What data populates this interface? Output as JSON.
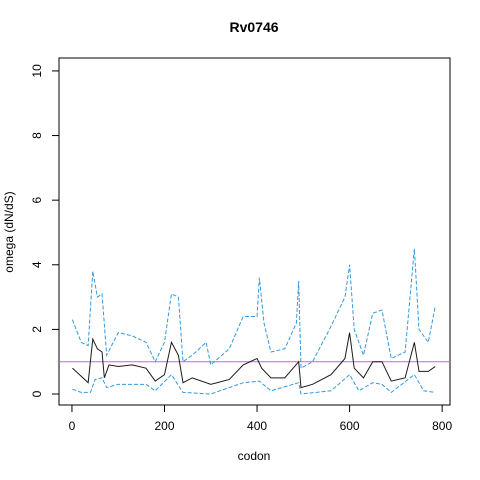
{
  "chart_data": {
    "type": "line",
    "title": "Rv0746",
    "xlabel": "codon",
    "ylabel": "omega (dN/dS)",
    "xlim": [
      -28,
      817
    ],
    "ylim": [
      -0.34,
      10.4
    ],
    "xticks": [
      0,
      200,
      400,
      600,
      800
    ],
    "yticks": [
      0,
      2,
      4,
      6,
      8,
      10
    ],
    "hline": {
      "value": 1,
      "color": "#cc66cc"
    },
    "series": [
      {
        "color": "#1a1a1a",
        "dash": false,
        "x": [
          1,
          20,
          35,
          45,
          55,
          65,
          70,
          80,
          100,
          130,
          160,
          180,
          200,
          215,
          230,
          240,
          260,
          300,
          340,
          370,
          400,
          410,
          430,
          460,
          490,
          495,
          520,
          560,
          590,
          600,
          610,
          630,
          650,
          670,
          690,
          720,
          740,
          750,
          770,
          785
        ],
        "values": [
          0.8,
          0.55,
          0.35,
          1.7,
          1.4,
          1.3,
          0.5,
          0.9,
          0.85,
          0.9,
          0.8,
          0.4,
          0.6,
          1.6,
          1.2,
          0.35,
          0.5,
          0.3,
          0.45,
          0.9,
          1.1,
          0.8,
          0.5,
          0.5,
          1.0,
          0.2,
          0.3,
          0.6,
          1.1,
          1.9,
          0.8,
          0.5,
          1.0,
          1.0,
          0.4,
          0.5,
          1.6,
          0.7,
          0.7,
          0.85
        ]
      },
      {
        "color": "#3399dd",
        "dash": true,
        "x": [
          1,
          20,
          35,
          45,
          55,
          65,
          75,
          100,
          130,
          160,
          180,
          200,
          215,
          230,
          240,
          260,
          290,
          300,
          340,
          370,
          400,
          405,
          415,
          430,
          460,
          485,
          490,
          495,
          520,
          560,
          590,
          600,
          610,
          630,
          650,
          670,
          690,
          720,
          740,
          750,
          770,
          785
        ],
        "values": [
          2.3,
          1.6,
          1.5,
          3.8,
          3.0,
          3.1,
          1.2,
          1.9,
          1.8,
          1.6,
          1.0,
          1.6,
          3.1,
          3.0,
          1.0,
          1.2,
          1.6,
          0.9,
          1.4,
          2.4,
          2.4,
          3.6,
          2.2,
          1.3,
          1.4,
          2.2,
          3.5,
          0.8,
          1.0,
          2.1,
          3.0,
          4.0,
          2.0,
          1.2,
          2.5,
          2.6,
          1.1,
          1.3,
          4.5,
          2.0,
          1.6,
          2.7
        ]
      },
      {
        "color": "#3399dd",
        "dash": true,
        "x": [
          1,
          20,
          40,
          50,
          65,
          75,
          100,
          160,
          180,
          215,
          240,
          300,
          370,
          405,
          430,
          490,
          495,
          560,
          600,
          620,
          650,
          670,
          690,
          740,
          760,
          785
        ],
        "values": [
          0.15,
          0.05,
          0.05,
          0.45,
          0.5,
          0.2,
          0.3,
          0.3,
          0.1,
          0.6,
          0.05,
          0.0,
          0.35,
          0.4,
          0.1,
          0.35,
          0.0,
          0.1,
          0.6,
          0.1,
          0.35,
          0.3,
          0.05,
          0.6,
          0.1,
          0.05
        ]
      }
    ]
  }
}
